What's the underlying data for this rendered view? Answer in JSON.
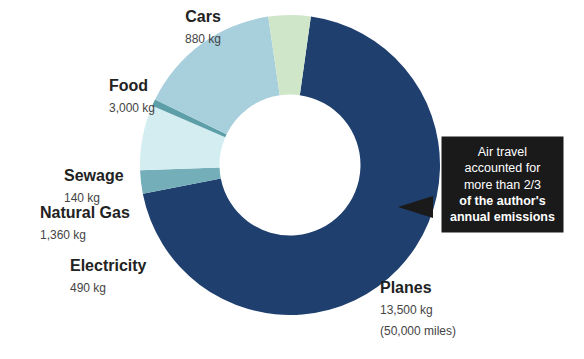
{
  "chart_data": {
    "type": "donut",
    "categories": [
      "Planes",
      "Electricity",
      "Natural Gas",
      "Sewage",
      "Food",
      "Cars"
    ],
    "values": [
      13500,
      490,
      1360,
      140,
      3000,
      880
    ],
    "value_labels": [
      "13,500 kg",
      "490 kg",
      "1,360 kg",
      "140 kg",
      "3,000 kg",
      "880 kg"
    ],
    "value_notes": [
      "(50,000 miles)",
      null,
      null,
      null,
      null,
      null
    ],
    "colors": [
      "#1f3f6e",
      "#74aeb9",
      "#d4edf1",
      "#5d9fa8",
      "#a8cfdc",
      "#cfe6c9"
    ],
    "callout_lines": [
      "Air travel",
      "accounted for",
      "more than 2/3",
      "of the author's",
      "annual emissions"
    ]
  }
}
